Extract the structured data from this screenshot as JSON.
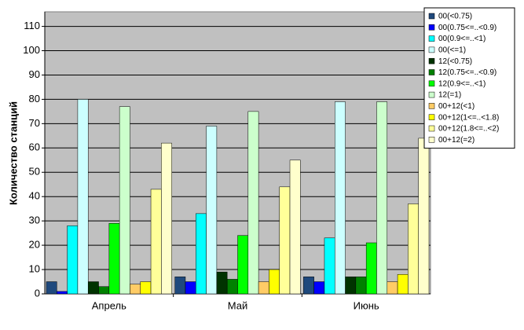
{
  "chart_data": {
    "type": "bar",
    "y_label": "Количество станций",
    "categories": [
      "Апрель",
      "Май",
      "Июнь"
    ],
    "series": [
      {
        "name": "00(<0.75)",
        "color": "#1f497d",
        "values": [
          5,
          7,
          7
        ]
      },
      {
        "name": "00(0.75<=..<0.9)",
        "color": "#0000ff",
        "values": [
          1,
          5,
          5
        ]
      },
      {
        "name": "00(0.9<=..<1)",
        "color": "#00ffff",
        "values": [
          28,
          33,
          23
        ]
      },
      {
        "name": "00(<=1)",
        "color": "#ccffff",
        "values": [
          80,
          69,
          79
        ]
      },
      {
        "name": "12(<0.75)",
        "color": "#003300",
        "values": [
          5,
          9,
          7
        ]
      },
      {
        "name": "12(0.75<=..<0.9)",
        "color": "#008000",
        "values": [
          3,
          6,
          7
        ]
      },
      {
        "name": "12(0.9<=..<1)",
        "color": "#00ff00",
        "values": [
          29,
          24,
          21
        ]
      },
      {
        "name": "12(=1)",
        "color": "#ccffcc",
        "values": [
          77,
          75,
          79
        ]
      },
      {
        "name": "00+12(<1)",
        "color": "#ffcc66",
        "values": [
          4,
          5,
          5
        ]
      },
      {
        "name": "00+12(1<=..<1.8)",
        "color": "#ffff00",
        "values": [
          5,
          10,
          8
        ]
      },
      {
        "name": "00+12(1.8<=..<2)",
        "color": "#ffff99",
        "values": [
          43,
          44,
          37
        ]
      },
      {
        "name": "00+12(=2)",
        "color": "#ffffcc",
        "values": [
          62,
          55,
          64
        ]
      }
    ],
    "ylim": [
      0,
      116
    ],
    "yticks": [
      0,
      10,
      20,
      30,
      40,
      50,
      60,
      70,
      80,
      90,
      100,
      110
    ],
    "grid": true
  }
}
